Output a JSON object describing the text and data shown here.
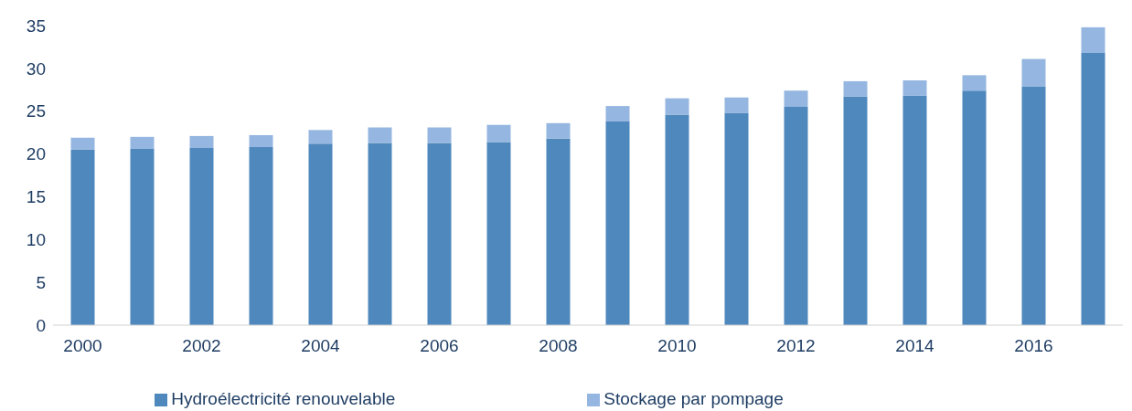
{
  "chart_data": {
    "type": "bar",
    "stacked": true,
    "categories": [
      "2000",
      null,
      "2002",
      null,
      "2004",
      null,
      "2006",
      null,
      "2008",
      null,
      "2010",
      null,
      "2012",
      null,
      "2014",
      null,
      "2016",
      null
    ],
    "series": [
      {
        "name": "Hydroélectricité renouvelable",
        "color": "#4f88bd",
        "values": [
          20.5,
          20.6,
          20.7,
          20.8,
          21.2,
          21.3,
          21.3,
          21.4,
          21.8,
          23.8,
          24.6,
          24.8,
          25.5,
          26.7,
          26.8,
          27.4,
          27.9,
          31.8
        ]
      },
      {
        "name": "Stockage par pompage",
        "color": "#95b6e0",
        "values": [
          1.4,
          1.4,
          1.4,
          1.4,
          1.6,
          1.8,
          1.8,
          2.0,
          1.8,
          1.8,
          1.9,
          1.8,
          1.9,
          1.8,
          1.8,
          1.8,
          3.2,
          3.0
        ]
      }
    ],
    "ylim": [
      0,
      35
    ],
    "yticks": [
      0,
      5,
      10,
      15,
      20,
      25,
      30,
      35
    ],
    "grid": false,
    "legend": "bottom"
  }
}
